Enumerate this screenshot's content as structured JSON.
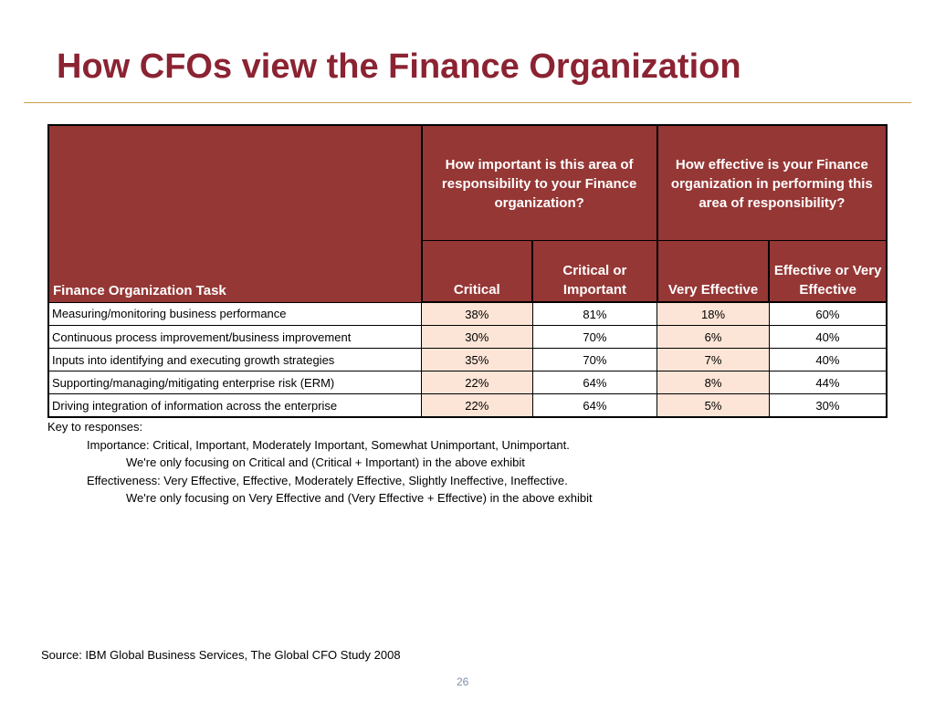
{
  "slide": {
    "title": "How CFOs view the Finance Organization",
    "page_number": "26"
  },
  "table": {
    "task_header": "Finance Organization Task",
    "group_importance": "How important is this area of responsibility to your Finance organization?",
    "group_effectiveness": "How effective is your Finance organization in performing this area of responsibility?",
    "columns": [
      "Critical",
      "Critical or Important",
      "Very Effective",
      "Effective or Very Effective"
    ],
    "rows": [
      {
        "task": "Measuring/monitoring business performance",
        "values": [
          "38%",
          "81%",
          "18%",
          "60%"
        ]
      },
      {
        "task": "Continuous process improvement/business improvement",
        "values": [
          "30%",
          "70%",
          "6%",
          "40%"
        ]
      },
      {
        "task": "Inputs into identifying and executing growth strategies",
        "values": [
          "35%",
          "70%",
          "7%",
          "40%"
        ]
      },
      {
        "task": "Supporting/managing/mitigating enterprise risk (ERM)",
        "values": [
          "22%",
          "64%",
          "8%",
          "44%"
        ]
      },
      {
        "task": "Driving integration of information across the enterprise",
        "values": [
          "22%",
          "64%",
          "5%",
          "30%"
        ]
      }
    ],
    "colors": {
      "header_bg": "#953735",
      "shaded_cell": "#fce4d6"
    }
  },
  "key": {
    "heading": "Key to responses:",
    "importance": "Importance:  Critical, Important, Moderately Important, Somewhat Unimportant, Unimportant.",
    "importance_note": "We're only focusing on Critical and (Critical + Important) in the above exhibit",
    "effectiveness": "Effectiveness:  Very Effective, Effective, Moderately Effective, Slightly Ineffective, Ineffective.",
    "effectiveness_note": "We're only focusing on Very Effective and (Very Effective + Effective) in the above exhibit"
  },
  "source": "Source:  IBM Global Business Services, The Global CFO Study 2008",
  "theme": {
    "title_color": "#8b2332",
    "rule_color": "#c9a44c"
  }
}
